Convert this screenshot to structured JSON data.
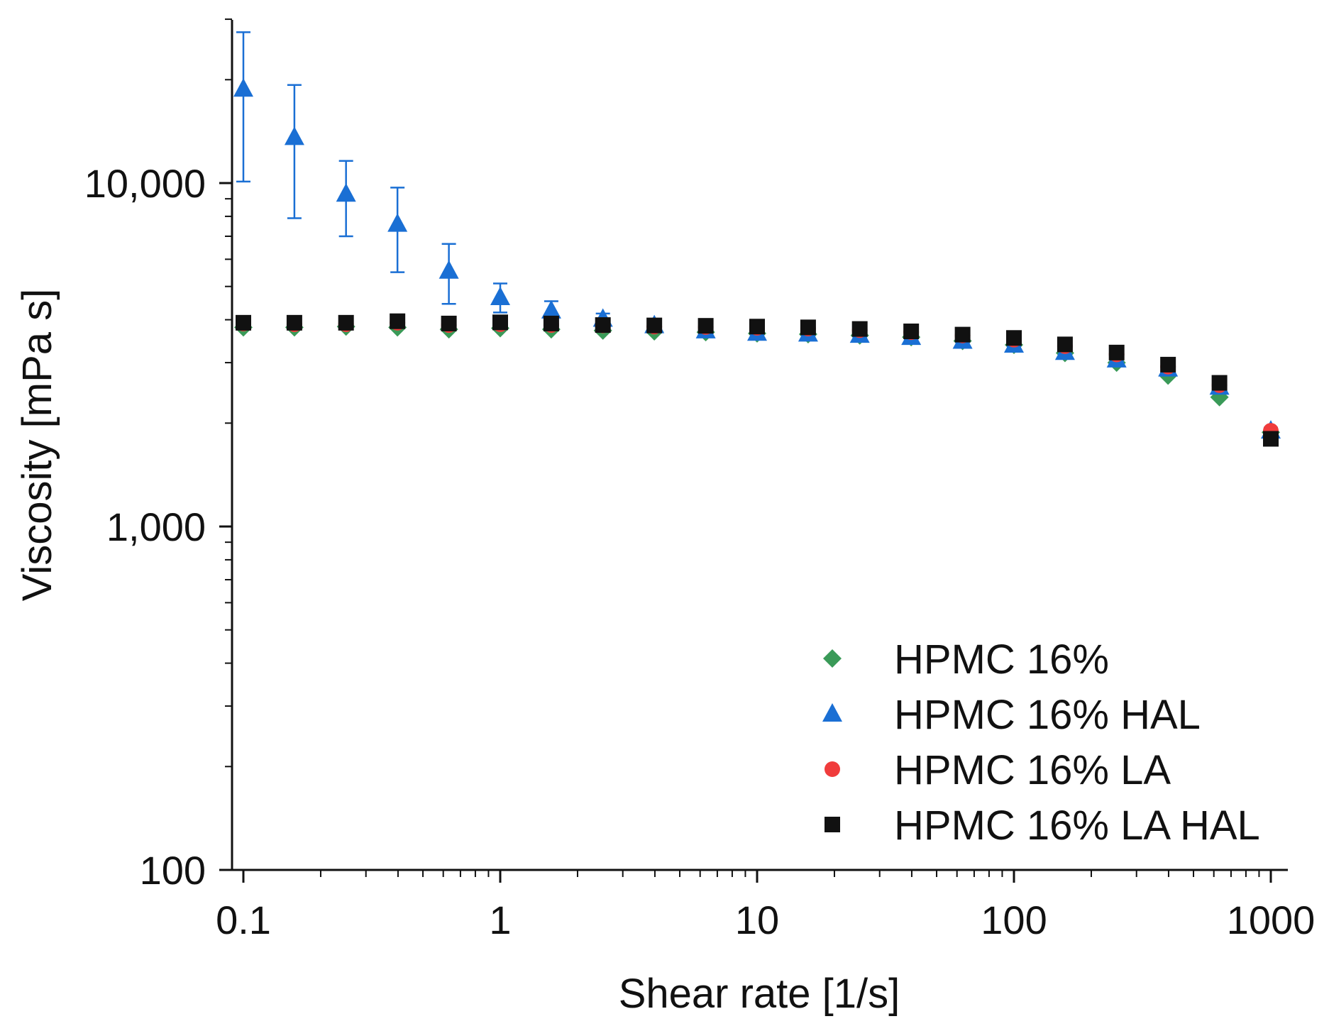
{
  "chart_data": {
    "type": "scatter",
    "title": "",
    "xlabel": "Shear rate [1/s]",
    "ylabel": "Viscosity [mPa s]",
    "xscale": "log",
    "yscale": "log",
    "xlim": [
      0.09,
      1150
    ],
    "ylim": [
      100,
      30000
    ],
    "xticks": [
      {
        "value": 0.1,
        "label": "0.1"
      },
      {
        "value": 1,
        "label": "1"
      },
      {
        "value": 10,
        "label": "10"
      },
      {
        "value": 100,
        "label": "100"
      },
      {
        "value": 1000,
        "label": "1000"
      }
    ],
    "yticks": [
      {
        "value": 100,
        "label": "100"
      },
      {
        "value": 1000,
        "label": "1,000"
      },
      {
        "value": 10000,
        "label": "10,000"
      }
    ],
    "legend_position": "bottom-right",
    "x": [
      0.1,
      0.158,
      0.251,
      0.398,
      0.631,
      1,
      1.58,
      2.51,
      3.98,
      6.31,
      10,
      15.8,
      25.1,
      39.8,
      63.1,
      100,
      158,
      251,
      398,
      631,
      1000
    ],
    "series": [
      {
        "name": "HPMC 16%",
        "marker": "diamond",
        "color": "#3a9a58",
        "values": [
          3800,
          3800,
          3820,
          3800,
          3750,
          3780,
          3750,
          3720,
          3700,
          3680,
          3650,
          3630,
          3600,
          3560,
          3470,
          3380,
          3200,
          3000,
          2750,
          2380,
          1880
        ],
        "errors": []
      },
      {
        "name": "HPMC 16% HAL",
        "marker": "triangle",
        "color": "#1a6fd4",
        "values": [
          18800,
          13600,
          9300,
          7600,
          5550,
          4650,
          4250,
          4020,
          3850,
          3720,
          3660,
          3640,
          3610,
          3560,
          3470,
          3380,
          3220,
          3060,
          2880,
          2550,
          1900
        ],
        "errors": [
          8700,
          5700,
          2300,
          2100,
          1100,
          450,
          280,
          150,
          80,
          80,
          60,
          50,
          50,
          50,
          50,
          40,
          40,
          40,
          40,
          40,
          40
        ]
      },
      {
        "name": "HPMC 16% LA",
        "marker": "circle",
        "color": "#f03c3c",
        "values": [
          3900,
          3880,
          3880,
          3920,
          3860,
          3880,
          3860,
          3850,
          3820,
          3810,
          3790,
          3770,
          3730,
          3680,
          3600,
          3500,
          3350,
          3170,
          2920,
          2580,
          1900
        ],
        "errors": []
      },
      {
        "name": "HPMC 16% LA HAL",
        "marker": "square",
        "color": "#111111",
        "values": [
          3920,
          3920,
          3920,
          3960,
          3900,
          3930,
          3900,
          3860,
          3850,
          3840,
          3820,
          3800,
          3760,
          3700,
          3620,
          3540,
          3390,
          3210,
          2960,
          2620,
          1800
        ],
        "errors": [
          60,
          80,
          70,
          120,
          90,
          120,
          100,
          80,
          70,
          60,
          60,
          60,
          50,
          50,
          50,
          50,
          50,
          50,
          80,
          80,
          60
        ]
      }
    ]
  }
}
